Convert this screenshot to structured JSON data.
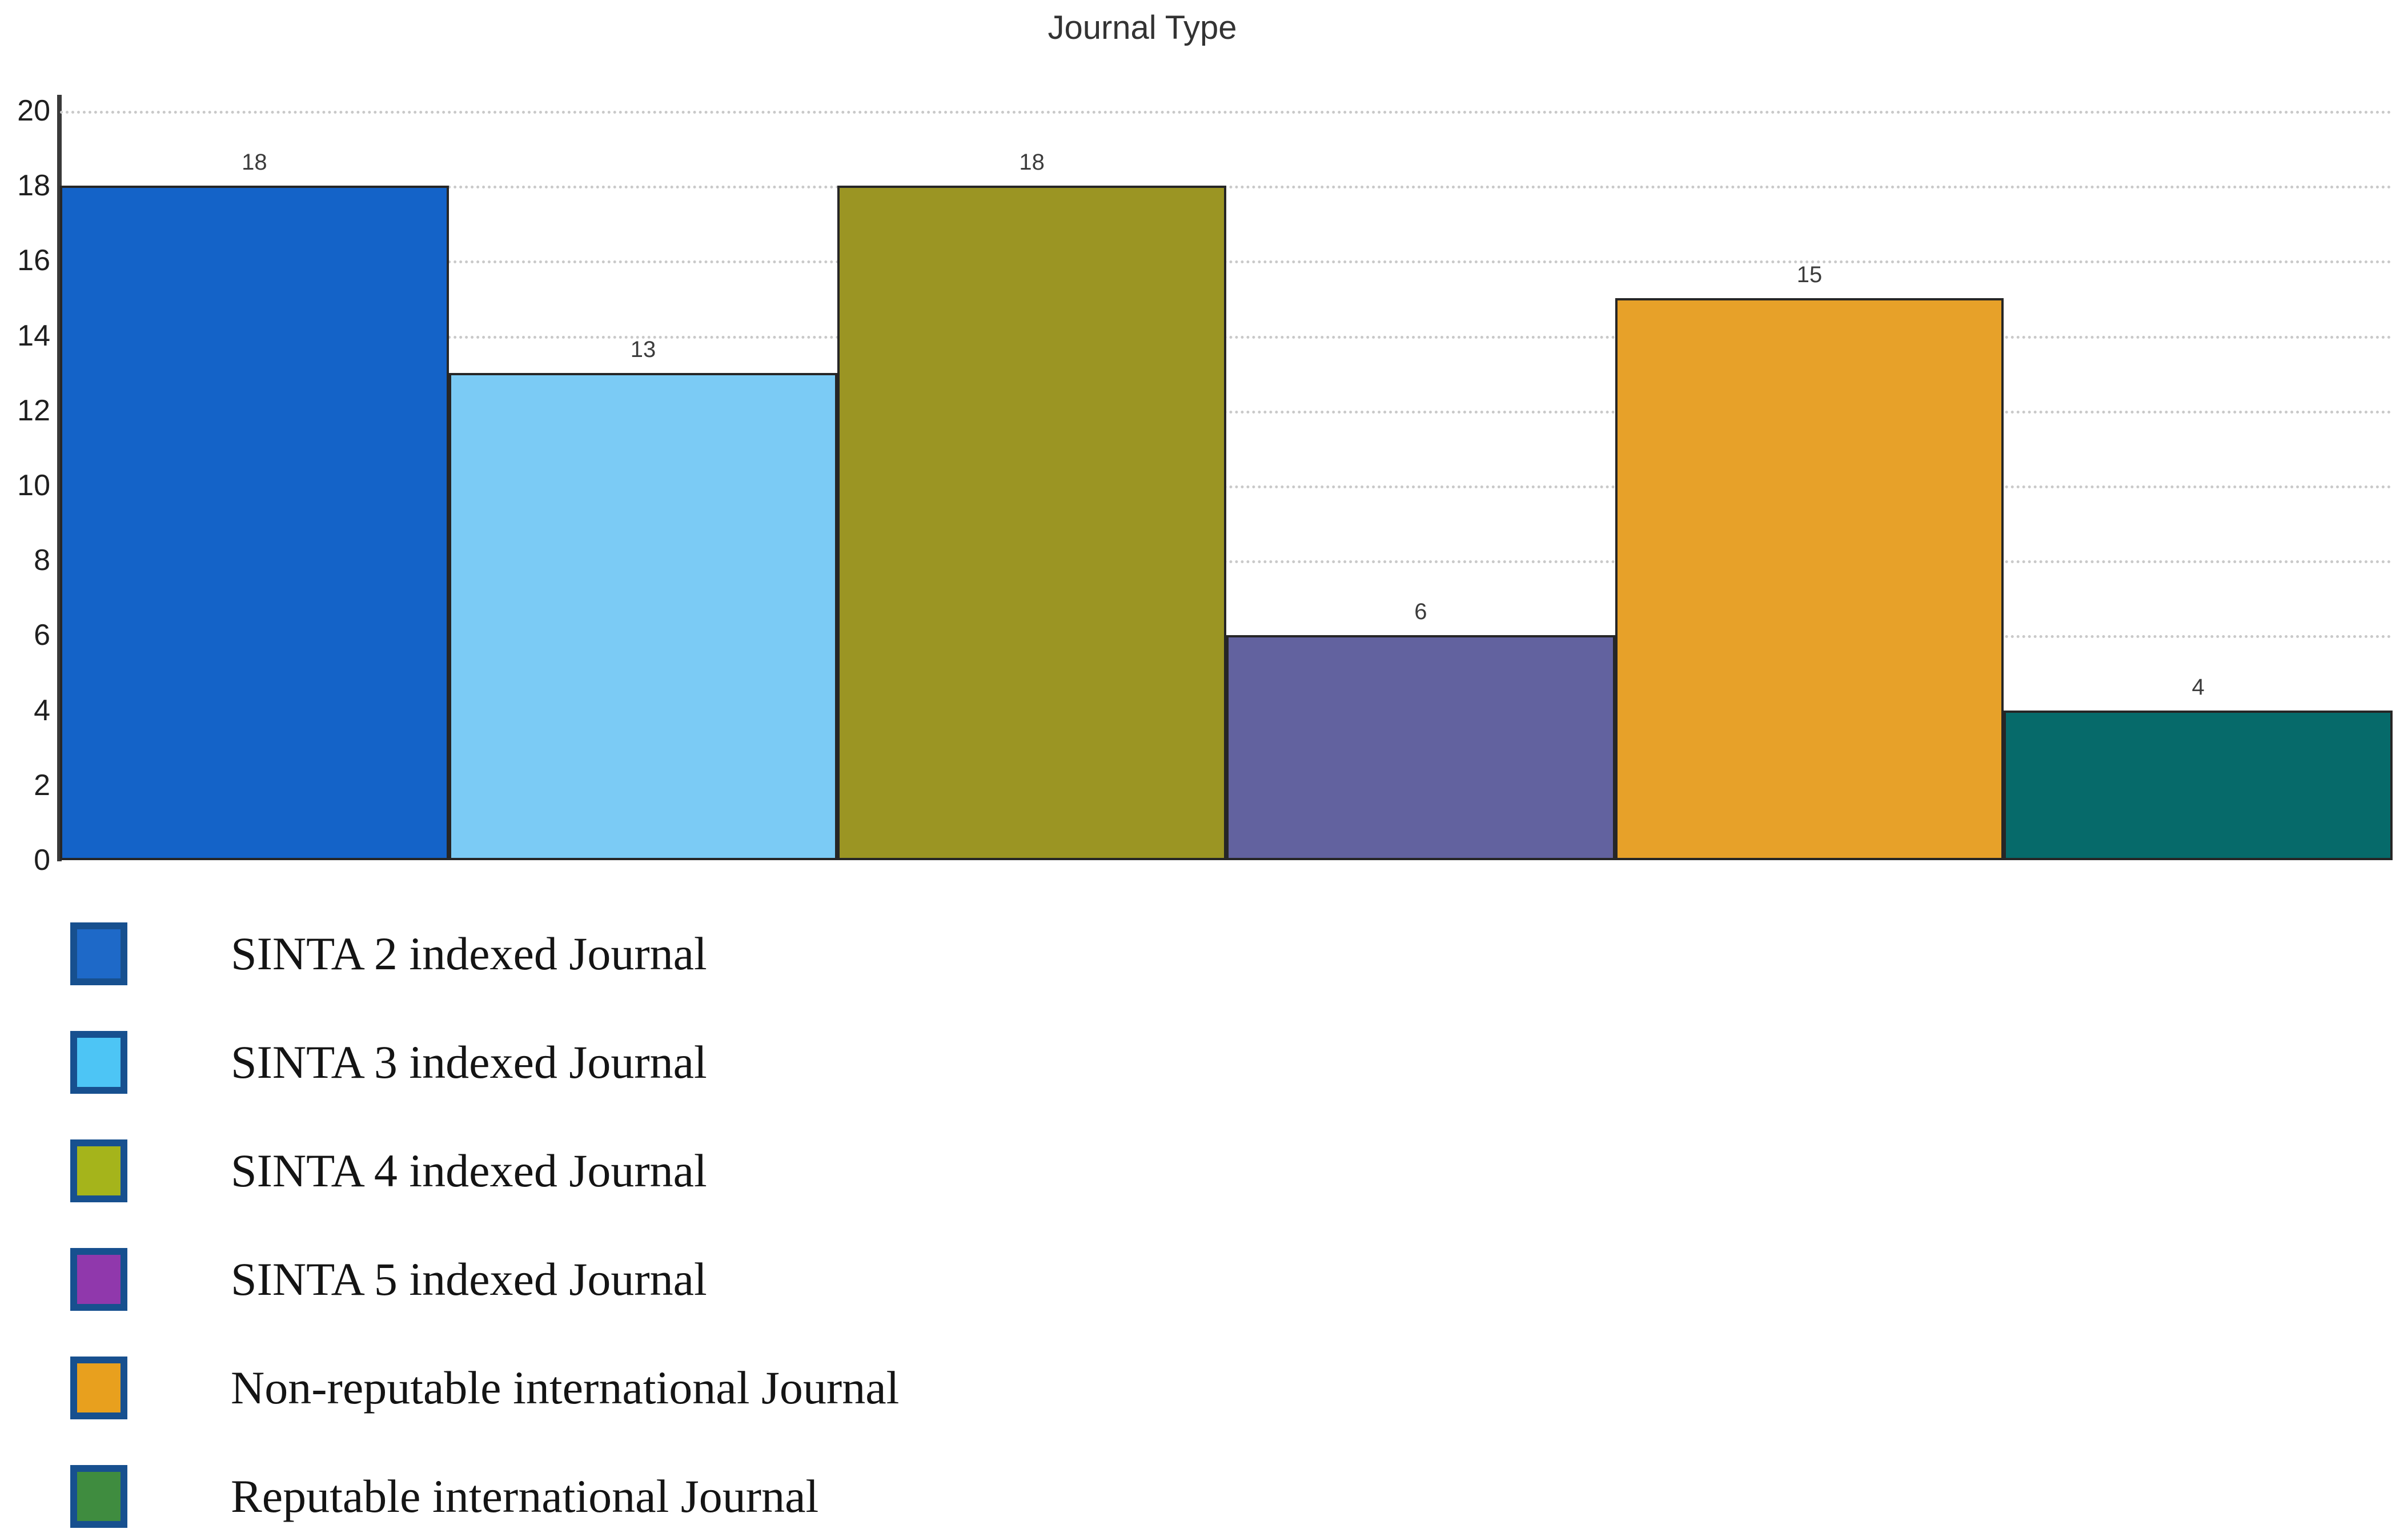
{
  "chart_data": {
    "type": "bar",
    "title": "Journal Type",
    "categories": [
      "SINTA 2 indexed Journal",
      "SINTA 3 indexed Journal",
      "SINTA 4 indexed Journal",
      "SINTA 5 indexed Journal",
      "Non-reputable international Journal",
      "Reputable international Journal"
    ],
    "values": [
      18,
      13,
      18,
      6,
      15,
      4
    ],
    "bar_colors": [
      "#1463C8",
      "#7BCBF5",
      "#9B9523",
      "#62629F",
      "#E7A129",
      "#066A6A"
    ],
    "bar_border_color": "#262626",
    "legend_swatch_colors": [
      "#1E69C8",
      "#4DC5F5",
      "#A5B41B",
      "#9038AC",
      "#E8A01E",
      "#3F8C3F"
    ],
    "legend_swatch_border_color": "#17508F",
    "grid_color": "#C9C9C9",
    "grid_style": "dotted-horizontal",
    "axis_color": "#3A3A3A",
    "xlabel": "",
    "ylabel": "",
    "ylim": [
      0,
      20
    ],
    "yticks": [
      0,
      2,
      4,
      6,
      8,
      10,
      12,
      14,
      16,
      18,
      20
    ],
    "legend_position": "bottom-left",
    "value_labels_shown": true
  }
}
